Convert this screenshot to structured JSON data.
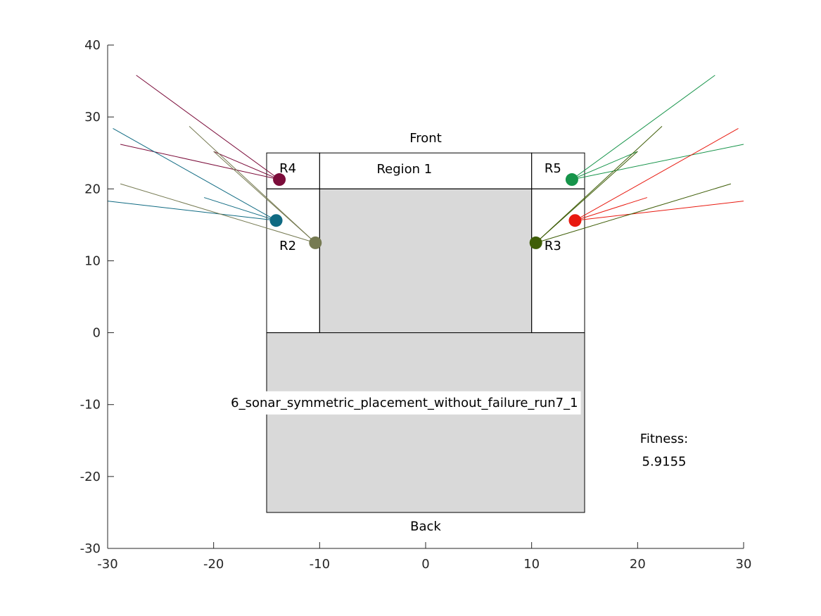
{
  "chart_data": {
    "type": "scatter",
    "title": "",
    "xlabel": "",
    "ylabel": "",
    "xlim": [
      -30,
      30
    ],
    "ylim": [
      -30,
      40
    ],
    "grid": false,
    "xticks": [
      -30,
      -20,
      -10,
      0,
      10,
      20,
      30
    ],
    "yticks": [
      -30,
      -20,
      -10,
      0,
      10,
      20,
      30,
      40
    ],
    "xtick_labels": [
      "-30",
      "-20",
      "-10",
      "0",
      "10",
      "20",
      "30"
    ],
    "ytick_labels": [
      "-30",
      "-20",
      "-10",
      "0",
      "10",
      "20",
      "30",
      "40"
    ],
    "rectangles": [
      {
        "x0": -15,
        "y0": -25,
        "x1": 15,
        "y1": 0,
        "fill": "#d9d9d9"
      },
      {
        "x0": -10,
        "y0": 0,
        "x1": 10,
        "y1": 20,
        "fill": "#d9d9d9"
      },
      {
        "x0": -15,
        "y0": 0,
        "x1": -10,
        "y1": 20,
        "fill": "none"
      },
      {
        "x0": 10,
        "y0": 0,
        "x1": 15,
        "y1": 20,
        "fill": "none"
      },
      {
        "x0": -15,
        "y0": 20,
        "x1": -10,
        "y1": 25,
        "fill": "none"
      },
      {
        "x0": -10,
        "y0": 20,
        "x1": 10,
        "y1": 25,
        "fill": "none"
      },
      {
        "x0": 10,
        "y0": 20,
        "x1": 15,
        "y1": 25,
        "fill": "none"
      }
    ],
    "sensors": [
      {
        "x": -13.8,
        "y": 21.3,
        "color": "#7b0c3a",
        "rays": [
          [
            -27.3,
            35.8
          ],
          [
            -20.0,
            25.2
          ],
          [
            -28.8,
            26.2
          ]
        ]
      },
      {
        "x": -14.1,
        "y": 15.6,
        "color": "#0f6a82",
        "rays": [
          [
            -29.5,
            28.4
          ],
          [
            -20.9,
            18.8
          ],
          [
            -30.0,
            18.3
          ]
        ]
      },
      {
        "x": -10.4,
        "y": 12.5,
        "color": "#767a52",
        "rays": [
          [
            -22.3,
            28.7
          ],
          [
            -20.0,
            25.2
          ],
          [
            -28.8,
            20.7
          ]
        ]
      },
      {
        "x": 13.8,
        "y": 21.3,
        "color": "#16944a",
        "rays": [
          [
            27.3,
            35.8
          ],
          [
            20.0,
            25.2
          ],
          [
            30.0,
            26.2
          ]
        ]
      },
      {
        "x": 14.1,
        "y": 15.6,
        "color": "#e8190f",
        "rays": [
          [
            29.5,
            28.4
          ],
          [
            20.9,
            18.8
          ],
          [
            30.0,
            18.3
          ]
        ]
      },
      {
        "x": 10.4,
        "y": 12.5,
        "color": "#3f5e08",
        "rays": [
          [
            22.3,
            28.7
          ],
          [
            20.0,
            25.2
          ],
          [
            28.8,
            20.7
          ]
        ]
      }
    ],
    "annotations": [
      {
        "id": "front",
        "text": "Front",
        "x": 0,
        "y": 26.5
      },
      {
        "id": "back",
        "text": "Back",
        "x": 0,
        "y": -27.5
      },
      {
        "id": "region1",
        "text": "Region 1",
        "x": -2,
        "y": 22.2
      },
      {
        "id": "r2",
        "text": "R2",
        "x": -13.0,
        "y": 11.5
      },
      {
        "id": "r3",
        "text": "R3",
        "x": 12.0,
        "y": 11.5
      },
      {
        "id": "r4",
        "text": "R4",
        "x": -13.0,
        "y": 22.3
      },
      {
        "id": "r5",
        "text": "R5",
        "x": 12.0,
        "y": 22.3
      },
      {
        "id": "run",
        "text": "6_sonar_symmetric_placement_without_failure_run7_1",
        "x": -2,
        "y": -10.3
      },
      {
        "id": "fitness-label",
        "text": "Fitness:",
        "x": 22.5,
        "y": -15.3
      },
      {
        "id": "fitness-value",
        "text": "5.9155",
        "x": 22.5,
        "y": -18.5
      }
    ]
  }
}
